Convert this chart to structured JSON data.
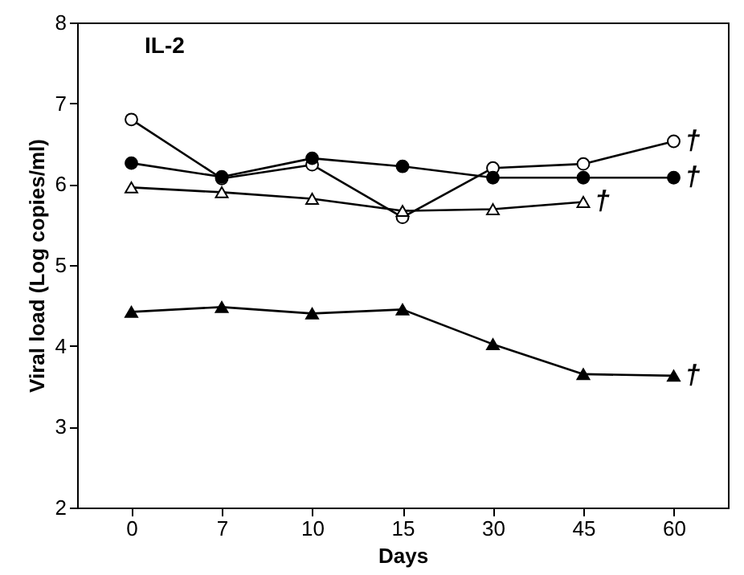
{
  "chart_data": {
    "type": "line",
    "xlabel": "Days",
    "ylabel": "Viral load (Log copies/ml)",
    "categories": [
      "0",
      "7",
      "10",
      "15",
      "30",
      "45",
      "60"
    ],
    "series": [
      {
        "color": "#000000",
        "marker": "circle",
        "values": [
          6.8,
          6.07,
          6.24,
          5.59,
          6.2,
          6.25,
          6.53
        ]
      },
      {
        "color": "#000000",
        "marker": "circle",
        "values": [
          6.26,
          6.09,
          6.32,
          6.22,
          6.08,
          6.08,
          6.08
        ]
      },
      {
        "color": "#000000",
        "marker": "triangle",
        "values": [
          5.96,
          5.9,
          5.82,
          5.67,
          5.69,
          5.78,
          null
        ]
      },
      {
        "color": "#000000",
        "marker": "triangle",
        "values": [
          4.42,
          4.48,
          4.4,
          4.45,
          4.02,
          3.65,
          3.63
        ]
      }
    ],
    "ylim": [
      2,
      8
    ],
    "yticks": [
      2,
      3,
      4,
      5,
      6,
      7,
      8
    ],
    "grid": false,
    "annotations": [
      "IL-2",
      {
        "text": "†",
        "x": "60",
        "y": 6.53
      },
      {
        "text": "†",
        "x": "60",
        "y": 6.08
      },
      {
        "text": "†",
        "x": "45",
        "y": 5.78
      },
      {
        "text": "†",
        "x": "60",
        "y": 3.63
      }
    ]
  }
}
